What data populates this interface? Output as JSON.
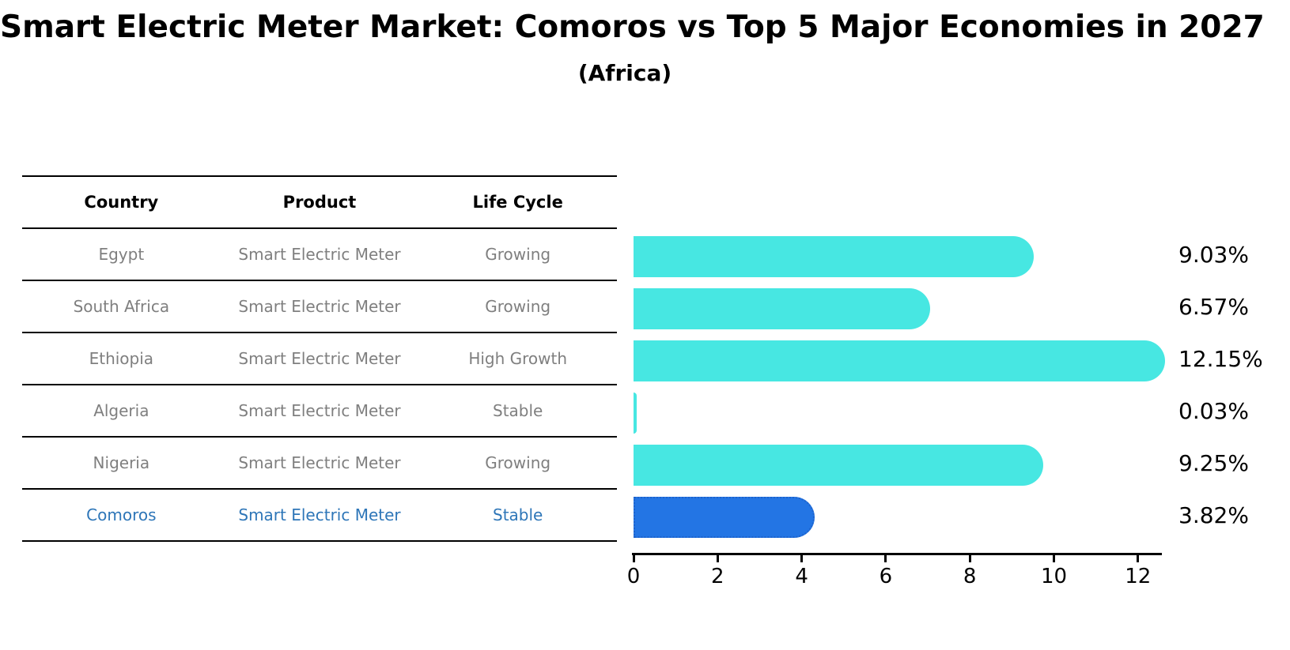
{
  "title": "Smart Electric Meter Market: Comoros vs Top 5 Major Economies in 2027",
  "subtitle": "(Africa)",
  "table": {
    "headers": [
      "Country",
      "Product",
      "Life Cycle"
    ],
    "rows": [
      {
        "cells": [
          "Egypt",
          "Smart Electric Meter",
          "Growing"
        ],
        "highlight": false
      },
      {
        "cells": [
          "South Africa",
          "Smart Electric Meter",
          "Growing"
        ],
        "highlight": false
      },
      {
        "cells": [
          "Ethiopia",
          "Smart Electric Meter",
          "High Growth"
        ],
        "highlight": false
      },
      {
        "cells": [
          "Algeria",
          "Smart Electric Meter",
          "Stable"
        ],
        "highlight": false
      },
      {
        "cells": [
          "Nigeria",
          "Smart Electric Meter",
          "Growing"
        ],
        "highlight": false
      },
      {
        "cells": [
          "Comoros",
          "Smart Electric Meter",
          "Stable"
        ],
        "highlight": true
      }
    ]
  },
  "chart_data": {
    "type": "bar",
    "orientation": "horizontal",
    "title": "Smart Electric Meter Market: Comoros vs Top 5 Major Economies in 2027 (Africa)",
    "categories": [
      "Egypt",
      "South Africa",
      "Ethiopia",
      "Algeria",
      "Nigeria",
      "Comoros"
    ],
    "values": [
      9.03,
      6.57,
      12.15,
      0.03,
      9.25,
      3.82
    ],
    "value_labels": [
      "9.03%",
      "6.57%",
      "12.15%",
      "0.03%",
      "9.25%",
      "3.82%"
    ],
    "x_ticks": [
      "0",
      "2",
      "4",
      "6",
      "8",
      "10",
      "12"
    ],
    "xlim": [
      0,
      12.6
    ],
    "grid": false,
    "legend": false,
    "highlight_index": 5
  },
  "colors": {
    "bar": "#47E7E2",
    "highlight_bar": "#2375E4",
    "highlight_border": "#1E63CC",
    "highlight_text": "#2E76B8",
    "row_text": "#7F7F7F",
    "header_text": "#000000",
    "axis": "#000000",
    "background": "#FFFFFF"
  }
}
